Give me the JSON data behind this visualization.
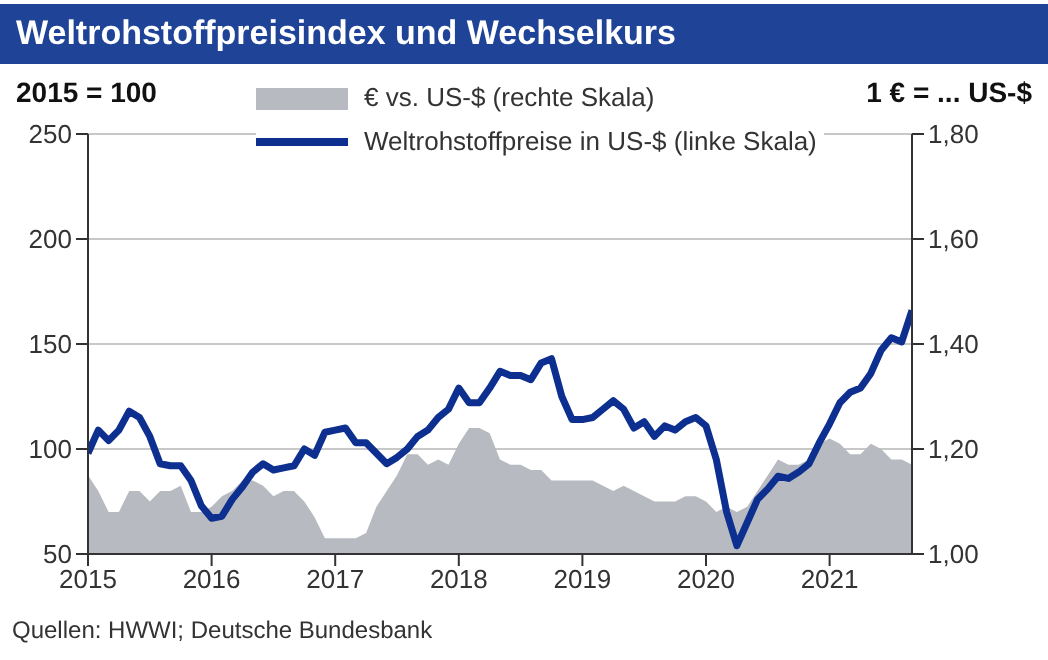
{
  "chart_data": {
    "type": "line",
    "title": "Weltrohstoffpreisindex und Wechselkurs",
    "ylabel": "2015 = 100",
    "y2label": "1 € = ... US-$",
    "annotations": [
      "Quellen: HWWI; Deutsche Bundesbank"
    ],
    "x": [
      "2015-01",
      "2015-02",
      "2015-03",
      "2015-04",
      "2015-05",
      "2015-06",
      "2015-07",
      "2015-08",
      "2015-09",
      "2015-10",
      "2015-11",
      "2015-12",
      "2016-01",
      "2016-02",
      "2016-03",
      "2016-04",
      "2016-05",
      "2016-06",
      "2016-07",
      "2016-08",
      "2016-09",
      "2016-10",
      "2016-11",
      "2016-12",
      "2017-01",
      "2017-02",
      "2017-03",
      "2017-04",
      "2017-05",
      "2017-06",
      "2017-07",
      "2017-08",
      "2017-09",
      "2017-10",
      "2017-11",
      "2017-12",
      "2018-01",
      "2018-02",
      "2018-03",
      "2018-04",
      "2018-05",
      "2018-06",
      "2018-07",
      "2018-08",
      "2018-09",
      "2018-10",
      "2018-11",
      "2018-12",
      "2019-01",
      "2019-02",
      "2019-03",
      "2019-04",
      "2019-05",
      "2019-06",
      "2019-07",
      "2019-08",
      "2019-09",
      "2019-10",
      "2019-11",
      "2019-12",
      "2020-01",
      "2020-02",
      "2020-03",
      "2020-04",
      "2020-05",
      "2020-06",
      "2020-07",
      "2020-08",
      "2020-09",
      "2020-10",
      "2020-11",
      "2020-12",
      "2021-01",
      "2021-02",
      "2021-03",
      "2021-04",
      "2021-05",
      "2021-06",
      "2021-07",
      "2021-08",
      "2021-09"
    ],
    "series": [
      {
        "name": "€ vs. US-$ (rechte Skala)",
        "type": "area",
        "axis": "y2",
        "color": "#b7bac0",
        "values": [
          1.15,
          1.12,
          1.08,
          1.08,
          1.12,
          1.12,
          1.1,
          1.12,
          1.12,
          1.13,
          1.08,
          1.08,
          1.09,
          1.11,
          1.12,
          1.14,
          1.14,
          1.13,
          1.11,
          1.12,
          1.12,
          1.1,
          1.07,
          1.03,
          1.03,
          1.03,
          1.03,
          1.04,
          1.09,
          1.12,
          1.15,
          1.19,
          1.19,
          1.17,
          1.18,
          1.17,
          1.21,
          1.24,
          1.24,
          1.23,
          1.18,
          1.17,
          1.17,
          1.16,
          1.16,
          1.14,
          1.14,
          1.14,
          1.14,
          1.14,
          1.13,
          1.12,
          1.13,
          1.12,
          1.11,
          1.1,
          1.1,
          1.1,
          1.11,
          1.11,
          1.1,
          1.08,
          1.09,
          1.08,
          1.09,
          1.12,
          1.15,
          1.18,
          1.17,
          1.17,
          1.18,
          1.21,
          1.22,
          1.21,
          1.19,
          1.19,
          1.21,
          1.2,
          1.18,
          1.18,
          1.17
        ]
      },
      {
        "name": "Weltrohstoffpreise in US-$ (linke Skala)",
        "axis": "y",
        "color": "#0d2f8f",
        "values": [
          98,
          109,
          104,
          109,
          118,
          115,
          106,
          93,
          92,
          92,
          85,
          73,
          67,
          68,
          76,
          82,
          89,
          93,
          90,
          91,
          92,
          100,
          97,
          108,
          109,
          110,
          103,
          103,
          98,
          93,
          96,
          100,
          106,
          109,
          115,
          119,
          129,
          122,
          122,
          129,
          137,
          135,
          135,
          133,
          141,
          143,
          125,
          114,
          114,
          115,
          119,
          123,
          119,
          110,
          113,
          106,
          111,
          109,
          113,
          115,
          111,
          95,
          70,
          54,
          65,
          76,
          81,
          87,
          86,
          89,
          93,
          103,
          112,
          122,
          127,
          129,
          136,
          147,
          153,
          151,
          166
        ]
      }
    ],
    "xlim": [
      "2015-01",
      "2021-09"
    ],
    "xticks": [
      "2015",
      "2016",
      "2017",
      "2018",
      "2019",
      "2020",
      "2021"
    ],
    "ylim": [
      50,
      250
    ],
    "yticks": [
      50,
      100,
      150,
      200,
      250
    ],
    "y2lim": [
      1.0,
      1.8
    ],
    "y2ticks": [
      {
        "value": 1.0,
        "label": "1,00"
      },
      {
        "value": 1.2,
        "label": "1,20"
      },
      {
        "value": 1.4,
        "label": "1,40"
      },
      {
        "value": 1.6,
        "label": "1,60"
      },
      {
        "value": 1.8,
        "label": "1,80"
      }
    ],
    "grid": "y",
    "legend": "top",
    "marker": "none",
    "line_style": "solid"
  }
}
